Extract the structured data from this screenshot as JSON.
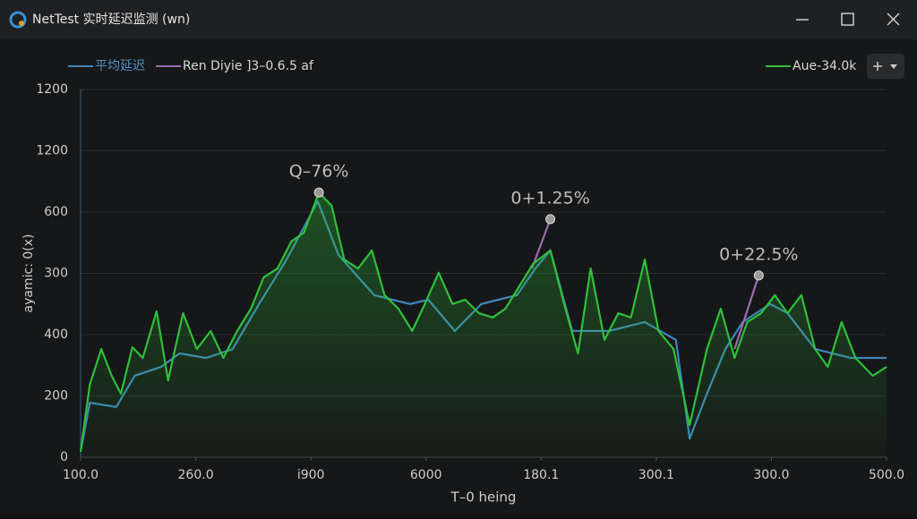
{
  "window": {
    "title": "NetTest 实时延迟监测 (wn)"
  },
  "chart_data": {
    "type": "line",
    "y_label": "ayamic: 0(x)",
    "x_label": "T–0 heing",
    "xlim": [
      0,
      700
    ],
    "xticks": [
      {
        "value": 0,
        "label": "100.0"
      },
      {
        "value": 100,
        "label": "260.0"
      },
      {
        "value": 200,
        "label": "i900"
      },
      {
        "value": 300,
        "label": "6000"
      },
      {
        "value": 400,
        "label": "180.1"
      },
      {
        "value": 500,
        "label": "300.1"
      },
      {
        "value": 600,
        "label": "300.0"
      },
      {
        "value": 700,
        "label": "500.0"
      }
    ],
    "ylim": [
      0,
      1200
    ],
    "yticks": [
      0,
      200,
      400,
      {
        "value": 600,
        "label": "300"
      },
      {
        "value": 800,
        "label": "600"
      },
      {
        "value": 1000,
        "label": "1200"
      },
      {
        "value": 1200,
        "label": "1200"
      }
    ],
    "grid": true,
    "series": [
      {
        "name": "平均延迟",
        "color": "#3f86b8",
        "x": [
          0,
          8,
          31,
          47,
          70,
          86,
          109,
          132,
          155,
          179,
          206,
          224,
          255,
          286,
          302,
          325,
          348,
          379,
          395,
          408,
          427,
          459,
          490,
          517,
          529,
          544,
          560,
          575,
          599,
          614,
          638,
          669,
          700
        ],
        "values": [
          18,
          178,
          164,
          266,
          295,
          339,
          324,
          353,
          500,
          646,
          835,
          660,
          529,
          500,
          514,
          412,
          500,
          529,
          616,
          675,
          412,
          412,
          441,
          383,
          61,
          207,
          353,
          441,
          500,
          470,
          353,
          324,
          324
        ]
      },
      {
        "name": "Ren Diyie ]3–0.6.5 af",
        "color": "#9b6bb0",
        "x": [
          392,
          408,
          500,
          568,
          589
        ],
        "values": [
          616,
          777,
          null,
          353,
          593
        ]
      },
      {
        "name": "Aue-34.0k",
        "color": "#2fbf3a",
        "x": [
          0,
          8,
          18,
          27,
          35,
          45,
          54,
          66,
          76,
          89,
          101,
          113,
          124,
          136,
          148,
          159,
          171,
          183,
          194,
          207,
          218,
          229,
          241,
          253,
          264,
          276,
          288,
          299,
          311,
          323,
          334,
          346,
          358,
          369,
          381,
          393,
          408,
          420,
          432,
          443,
          455,
          467,
          478,
          490,
          502,
          515,
          529,
          544,
          556,
          568,
          579,
          591,
          603,
          614,
          626,
          638,
          649,
          661,
          673,
          688,
          700
        ],
        "values": [
          18,
          237,
          353,
          266,
          207,
          359,
          324,
          476,
          251,
          470,
          353,
          412,
          324,
          412,
          485,
          587,
          616,
          704,
          733,
          864,
          821,
          645,
          616,
          675,
          529,
          485,
          412,
          500,
          602,
          500,
          514,
          470,
          456,
          485,
          558,
          631,
          675,
          500,
          339,
          616,
          383,
          470,
          456,
          645,
          412,
          353,
          105,
          353,
          485,
          324,
          441,
          470,
          529,
          470,
          529,
          353,
          295,
          441,
          324,
          266,
          295
        ]
      }
    ],
    "annotations": [
      {
        "text": "Q–76%",
        "x": 207,
        "y": 864
      },
      {
        "text": "0+1.25%",
        "x": 408,
        "y": 777
      },
      {
        "text": "0+22.5%",
        "x": 589,
        "y": 593
      }
    ]
  }
}
